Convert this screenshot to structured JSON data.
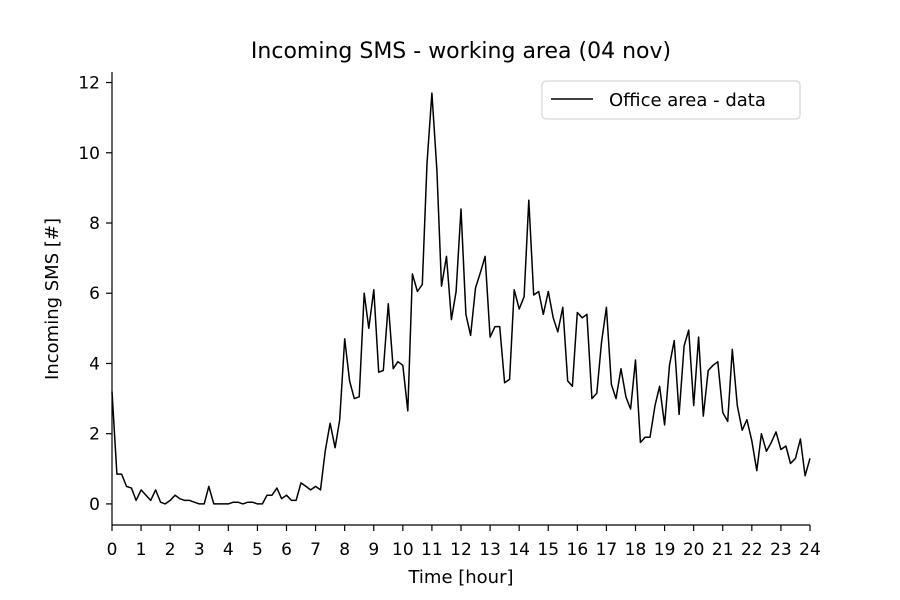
{
  "chart_data": {
    "type": "line",
    "title": "Incoming SMS - working area (04 nov)",
    "xlabel": "Time [hour]",
    "ylabel": "Incoming SMS [#]",
    "xlim": [
      0,
      24
    ],
    "ylim": [
      -0.6,
      12.3
    ],
    "xticks": [
      0,
      1,
      2,
      3,
      4,
      5,
      6,
      7,
      8,
      9,
      10,
      11,
      12,
      13,
      14,
      15,
      16,
      17,
      18,
      19,
      20,
      21,
      22,
      23,
      24
    ],
    "yticks": [
      0,
      2,
      4,
      6,
      8,
      10,
      12
    ],
    "grid": false,
    "legend_position": "top-right",
    "series": [
      {
        "name": "Office area - data",
        "color": "#000000",
        "x": [
          0.0,
          0.17,
          0.33,
          0.5,
          0.67,
          0.83,
          1.0,
          1.17,
          1.33,
          1.5,
          1.67,
          1.83,
          2.0,
          2.17,
          2.33,
          2.5,
          2.67,
          2.83,
          3.0,
          3.17,
          3.33,
          3.5,
          3.67,
          3.83,
          4.0,
          4.17,
          4.33,
          4.5,
          4.67,
          4.83,
          5.0,
          5.17,
          5.33,
          5.5,
          5.67,
          5.83,
          6.0,
          6.17,
          6.33,
          6.5,
          6.67,
          6.83,
          7.0,
          7.17,
          7.33,
          7.5,
          7.67,
          7.83,
          8.0,
          8.17,
          8.33,
          8.5,
          8.67,
          8.83,
          9.0,
          9.17,
          9.33,
          9.5,
          9.67,
          9.83,
          10.0,
          10.17,
          10.33,
          10.5,
          10.67,
          10.83,
          11.0,
          11.17,
          11.33,
          11.5,
          11.67,
          11.83,
          12.0,
          12.17,
          12.33,
          12.5,
          12.67,
          12.83,
          13.0,
          13.17,
          13.33,
          13.5,
          13.67,
          13.83,
          14.0,
          14.17,
          14.33,
          14.5,
          14.67,
          14.83,
          15.0,
          15.17,
          15.33,
          15.5,
          15.67,
          15.83,
          16.0,
          16.17,
          16.33,
          16.5,
          16.67,
          16.83,
          17.0,
          17.17,
          17.33,
          17.5,
          17.67,
          17.83,
          18.0,
          18.17,
          18.33,
          18.5,
          18.67,
          18.83,
          19.0,
          19.17,
          19.33,
          19.5,
          19.67,
          19.83,
          20.0,
          20.17,
          20.33,
          20.5,
          20.67,
          20.83,
          21.0,
          21.17,
          21.33,
          21.5,
          21.67,
          21.83,
          22.0,
          22.17,
          22.33,
          22.5,
          22.67,
          22.83,
          23.0,
          23.17,
          23.33,
          23.5,
          23.67,
          23.83,
          24.0
        ],
        "y": [
          3.2,
          0.85,
          0.85,
          0.5,
          0.45,
          0.1,
          0.4,
          0.25,
          0.1,
          0.4,
          0.05,
          0.0,
          0.1,
          0.25,
          0.15,
          0.1,
          0.1,
          0.05,
          0.0,
          0.0,
          0.5,
          0.0,
          0.0,
          0.0,
          0.0,
          0.05,
          0.05,
          0.0,
          0.05,
          0.05,
          0.0,
          0.0,
          0.25,
          0.25,
          0.45,
          0.15,
          0.25,
          0.1,
          0.1,
          0.6,
          0.5,
          0.4,
          0.5,
          0.4,
          1.5,
          2.3,
          1.6,
          2.4,
          4.7,
          3.5,
          3.0,
          3.05,
          6.0,
          5.0,
          6.1,
          3.75,
          3.8,
          5.7,
          3.85,
          4.05,
          3.95,
          2.65,
          6.55,
          6.05,
          6.25,
          9.7,
          11.7,
          9.5,
          6.2,
          7.05,
          5.25,
          6.05,
          8.4,
          5.4,
          4.8,
          6.15,
          6.6,
          7.05,
          4.75,
          5.05,
          5.05,
          3.45,
          3.55,
          6.1,
          5.55,
          5.9,
          8.65,
          5.95,
          6.05,
          5.4,
          6.05,
          5.3,
          4.9,
          5.6,
          3.5,
          3.35,
          5.45,
          5.3,
          5.4,
          3.0,
          3.15,
          4.6,
          5.6,
          3.4,
          3.0,
          3.85,
          3.05,
          2.7,
          4.1,
          1.75,
          1.9,
          1.9,
          2.8,
          3.35,
          2.25,
          3.95,
          4.65,
          2.55,
          4.5,
          4.95,
          2.8,
          4.75,
          2.5,
          3.8,
          3.95,
          4.05,
          2.6,
          2.35,
          4.4,
          2.8,
          2.1,
          2.4,
          1.8,
          0.95,
          2.0,
          1.5,
          1.75,
          2.05,
          1.55,
          1.65,
          1.15,
          1.3,
          1.85,
          0.8,
          1.3
        ]
      }
    ]
  }
}
